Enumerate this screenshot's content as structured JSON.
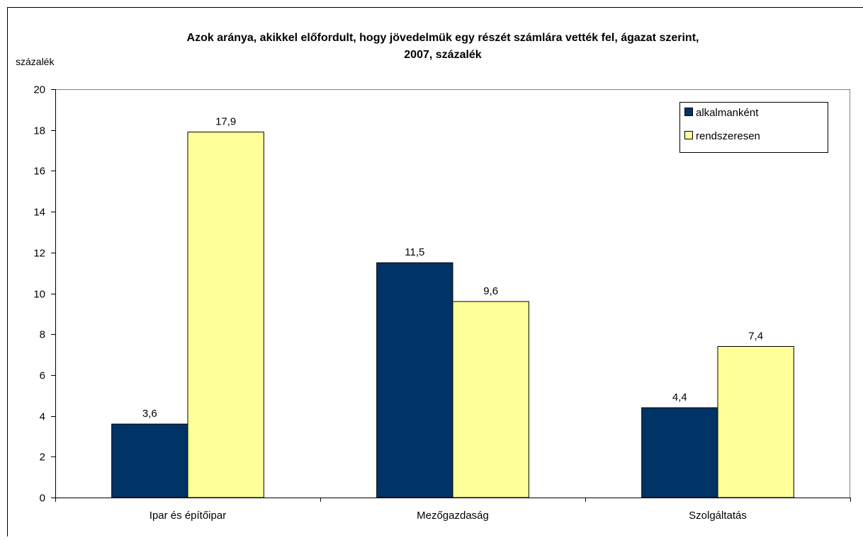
{
  "chart_data": {
    "type": "bar",
    "title_lines": [
      "Azok aránya, akikkel előfordult, hogy jövedelmük egy részét számlára vették fel, ágazat szerint,",
      "2007, százalék"
    ],
    "ylabel": "százalék",
    "xlabel": "",
    "categories": [
      "Ipar és építőipar",
      "Mezőgazdaság",
      "Szolgáltatás"
    ],
    "series": [
      {
        "name": "alkalmanként",
        "values": [
          3.6,
          11.5,
          4.4
        ],
        "labels": [
          "3,6",
          "11,5",
          "4,4"
        ],
        "color": "#003366"
      },
      {
        "name": "rendszeresen",
        "values": [
          17.9,
          9.6,
          7.4
        ],
        "labels": [
          "17,9",
          "9,6",
          "7,4"
        ],
        "color": "#FFFF99"
      }
    ],
    "ylim": [
      0,
      20
    ],
    "yticks": [
      0,
      2,
      4,
      6,
      8,
      10,
      12,
      14,
      16,
      18,
      20
    ],
    "grid": false,
    "legend_position": "top-right"
  }
}
